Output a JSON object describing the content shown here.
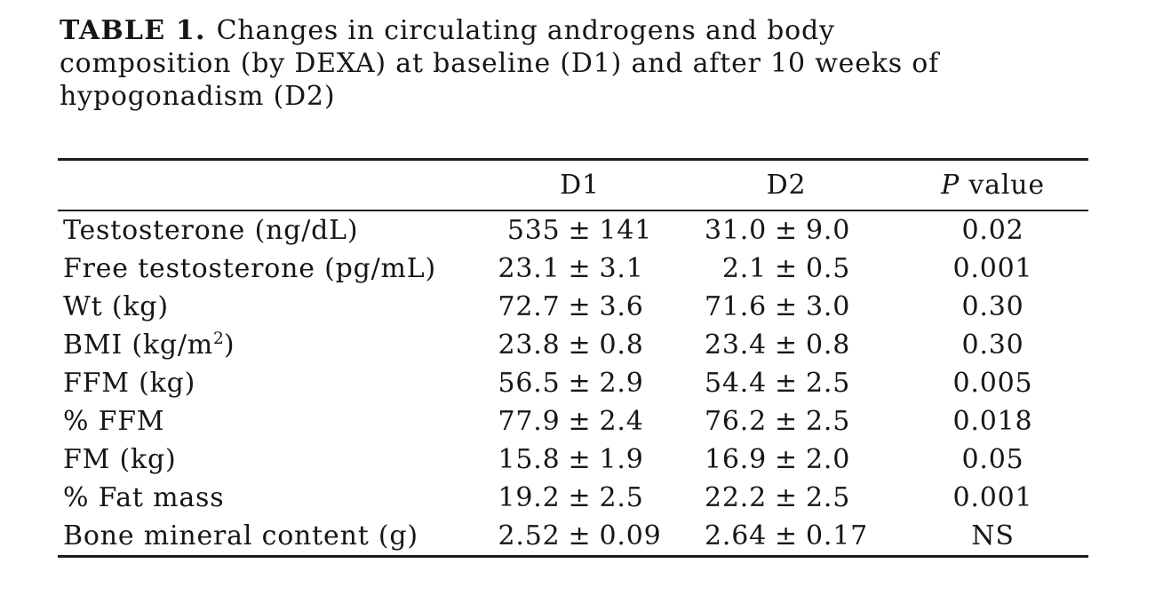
{
  "caption": {
    "label": "TABLE 1.",
    "line1": "Changes in circulating androgens and body",
    "line2": "composition (by DEXA) at baseline (D1) and after 10 weeks of",
    "line3": "hypogonadism (D2)"
  },
  "table": {
    "plus_minus": "±",
    "headers": {
      "label": "",
      "d1": "D1",
      "d2": "D2",
      "p_italic": "P",
      "p_rest": "value"
    },
    "rows": [
      {
        "label": "Testosterone (ng/dL)",
        "label_sup": "",
        "label_end": "",
        "d1_value": "535",
        "d1_error": "141",
        "d2_value": "31.0",
        "d2_error": "9.0",
        "p": "0.02"
      },
      {
        "label": "Free testosterone (pg/mL)",
        "label_sup": "",
        "label_end": "",
        "d1_value": "23.1",
        "d1_error": "3.1",
        "d2_value": "2.1",
        "d2_error": "0.5",
        "p": "0.001"
      },
      {
        "label": "Wt (kg)",
        "label_sup": "",
        "label_end": "",
        "d1_value": "72.7",
        "d1_error": "3.6",
        "d2_value": "71.6",
        "d2_error": "3.0",
        "p": "0.30"
      },
      {
        "label": "BMI (kg/m",
        "label_sup": "2",
        "label_end": ")",
        "d1_value": "23.8",
        "d1_error": "0.8",
        "d2_value": "23.4",
        "d2_error": "0.8",
        "p": "0.30"
      },
      {
        "label": "FFM (kg)",
        "label_sup": "",
        "label_end": "",
        "d1_value": "56.5",
        "d1_error": "2.9",
        "d2_value": "54.4",
        "d2_error": "2.5",
        "p": "0.005"
      },
      {
        "label": "% FFM",
        "label_sup": "",
        "label_end": "",
        "d1_value": "77.9",
        "d1_error": "2.4",
        "d2_value": "76.2",
        "d2_error": "2.5",
        "p": "0.018"
      },
      {
        "label": "FM (kg)",
        "label_sup": "",
        "label_end": "",
        "d1_value": "15.8",
        "d1_error": "1.9",
        "d2_value": "16.9",
        "d2_error": "2.0",
        "p": "0.05"
      },
      {
        "label": "% Fat mass",
        "label_sup": "",
        "label_end": "",
        "d1_value": "19.2",
        "d1_error": "2.5",
        "d2_value": "22.2",
        "d2_error": "2.5",
        "p": "0.001"
      },
      {
        "label": "Bone mineral content (g)",
        "label_sup": "",
        "label_end": "",
        "d1_value": "2.52",
        "d1_error": "0.09",
        "d2_value": "2.64",
        "d2_error": "0.17",
        "p": "NS"
      }
    ]
  }
}
